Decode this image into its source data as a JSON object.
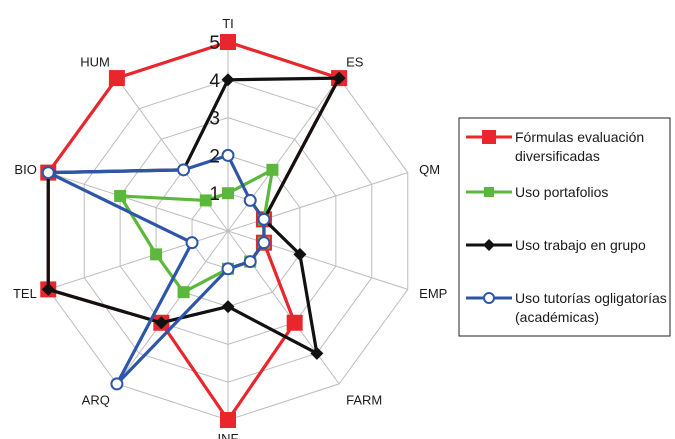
{
  "chart_data": {
    "type": "radar",
    "axes": [
      "TI",
      "ES",
      "QM",
      "EMP",
      "FARM",
      "INF",
      "ARQ",
      "TEL",
      "BIO",
      "HUM"
    ],
    "rmax": 5,
    "ticks": [
      "1",
      "2",
      "3",
      "4",
      "5"
    ],
    "grid": true,
    "legend_position": "right",
    "series": [
      {
        "name_lines": [
          "Fórmulas evaluación",
          "diversificadas"
        ],
        "color": "#e8262b",
        "marker": "square",
        "values": [
          5,
          5,
          1,
          1,
          3,
          5,
          3,
          5,
          5,
          5
        ]
      },
      {
        "name_lines": [
          "Uso portafolios"
        ],
        "color": "#5cb83c",
        "marker": "square",
        "values": [
          1,
          2,
          1,
          1,
          1,
          1,
          2,
          2,
          3,
          1
        ]
      },
      {
        "name_lines": [
          "Uso trabajo en grupo"
        ],
        "color": "#111111",
        "marker": "diamond",
        "values": [
          4,
          5,
          1,
          2,
          4,
          2,
          3,
          5,
          5,
          2
        ]
      },
      {
        "name_lines": [
          "Uso tutorías ogligatorías",
          "(académicas)"
        ],
        "color": "#2e55a8",
        "marker": "circle",
        "values": [
          2,
          1,
          1,
          1,
          1,
          1,
          5,
          1,
          5,
          2
        ]
      }
    ]
  }
}
